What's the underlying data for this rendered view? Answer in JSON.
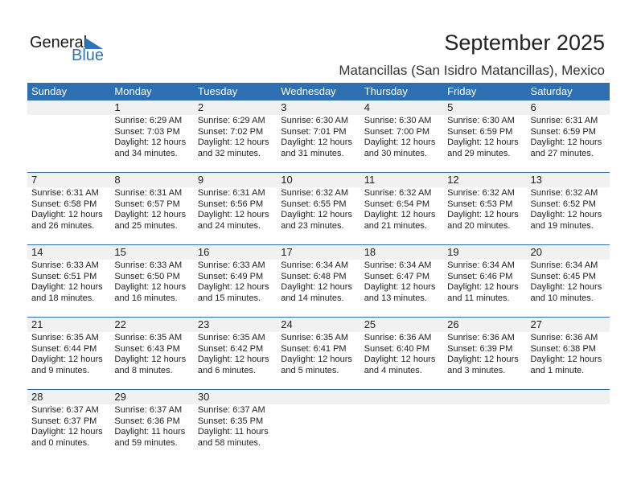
{
  "logo": {
    "general": "General",
    "blue": "Blue"
  },
  "title": "September 2025",
  "location": "Matancillas (San Isidro Matancillas), Mexico",
  "colors": {
    "header": "#2e6fb1",
    "band": "#f1f1f1",
    "logo_blue": "#2e75b6"
  },
  "weekdays": [
    "Sunday",
    "Monday",
    "Tuesday",
    "Wednesday",
    "Thursday",
    "Friday",
    "Saturday"
  ],
  "weeks": [
    [
      null,
      {
        "day": "1",
        "sunrise": "Sunrise: 6:29 AM",
        "sunset": "Sunset: 7:03 PM",
        "daylight1": "Daylight: 12 hours",
        "daylight2": "and 34 minutes."
      },
      {
        "day": "2",
        "sunrise": "Sunrise: 6:29 AM",
        "sunset": "Sunset: 7:02 PM",
        "daylight1": "Daylight: 12 hours",
        "daylight2": "and 32 minutes."
      },
      {
        "day": "3",
        "sunrise": "Sunrise: 6:30 AM",
        "sunset": "Sunset: 7:01 PM",
        "daylight1": "Daylight: 12 hours",
        "daylight2": "and 31 minutes."
      },
      {
        "day": "4",
        "sunrise": "Sunrise: 6:30 AM",
        "sunset": "Sunset: 7:00 PM",
        "daylight1": "Daylight: 12 hours",
        "daylight2": "and 30 minutes."
      },
      {
        "day": "5",
        "sunrise": "Sunrise: 6:30 AM",
        "sunset": "Sunset: 6:59 PM",
        "daylight1": "Daylight: 12 hours",
        "daylight2": "and 29 minutes."
      },
      {
        "day": "6",
        "sunrise": "Sunrise: 6:31 AM",
        "sunset": "Sunset: 6:59 PM",
        "daylight1": "Daylight: 12 hours",
        "daylight2": "and 27 minutes."
      }
    ],
    [
      {
        "day": "7",
        "sunrise": "Sunrise: 6:31 AM",
        "sunset": "Sunset: 6:58 PM",
        "daylight1": "Daylight: 12 hours",
        "daylight2": "and 26 minutes."
      },
      {
        "day": "8",
        "sunrise": "Sunrise: 6:31 AM",
        "sunset": "Sunset: 6:57 PM",
        "daylight1": "Daylight: 12 hours",
        "daylight2": "and 25 minutes."
      },
      {
        "day": "9",
        "sunrise": "Sunrise: 6:31 AM",
        "sunset": "Sunset: 6:56 PM",
        "daylight1": "Daylight: 12 hours",
        "daylight2": "and 24 minutes."
      },
      {
        "day": "10",
        "sunrise": "Sunrise: 6:32 AM",
        "sunset": "Sunset: 6:55 PM",
        "daylight1": "Daylight: 12 hours",
        "daylight2": "and 23 minutes."
      },
      {
        "day": "11",
        "sunrise": "Sunrise: 6:32 AM",
        "sunset": "Sunset: 6:54 PM",
        "daylight1": "Daylight: 12 hours",
        "daylight2": "and 21 minutes."
      },
      {
        "day": "12",
        "sunrise": "Sunrise: 6:32 AM",
        "sunset": "Sunset: 6:53 PM",
        "daylight1": "Daylight: 12 hours",
        "daylight2": "and 20 minutes."
      },
      {
        "day": "13",
        "sunrise": "Sunrise: 6:32 AM",
        "sunset": "Sunset: 6:52 PM",
        "daylight1": "Daylight: 12 hours",
        "daylight2": "and 19 minutes."
      }
    ],
    [
      {
        "day": "14",
        "sunrise": "Sunrise: 6:33 AM",
        "sunset": "Sunset: 6:51 PM",
        "daylight1": "Daylight: 12 hours",
        "daylight2": "and 18 minutes."
      },
      {
        "day": "15",
        "sunrise": "Sunrise: 6:33 AM",
        "sunset": "Sunset: 6:50 PM",
        "daylight1": "Daylight: 12 hours",
        "daylight2": "and 16 minutes."
      },
      {
        "day": "16",
        "sunrise": "Sunrise: 6:33 AM",
        "sunset": "Sunset: 6:49 PM",
        "daylight1": "Daylight: 12 hours",
        "daylight2": "and 15 minutes."
      },
      {
        "day": "17",
        "sunrise": "Sunrise: 6:34 AM",
        "sunset": "Sunset: 6:48 PM",
        "daylight1": "Daylight: 12 hours",
        "daylight2": "and 14 minutes."
      },
      {
        "day": "18",
        "sunrise": "Sunrise: 6:34 AM",
        "sunset": "Sunset: 6:47 PM",
        "daylight1": "Daylight: 12 hours",
        "daylight2": "and 13 minutes."
      },
      {
        "day": "19",
        "sunrise": "Sunrise: 6:34 AM",
        "sunset": "Sunset: 6:46 PM",
        "daylight1": "Daylight: 12 hours",
        "daylight2": "and 11 minutes."
      },
      {
        "day": "20",
        "sunrise": "Sunrise: 6:34 AM",
        "sunset": "Sunset: 6:45 PM",
        "daylight1": "Daylight: 12 hours",
        "daylight2": "and 10 minutes."
      }
    ],
    [
      {
        "day": "21",
        "sunrise": "Sunrise: 6:35 AM",
        "sunset": "Sunset: 6:44 PM",
        "daylight1": "Daylight: 12 hours",
        "daylight2": "and 9 minutes."
      },
      {
        "day": "22",
        "sunrise": "Sunrise: 6:35 AM",
        "sunset": "Sunset: 6:43 PM",
        "daylight1": "Daylight: 12 hours",
        "daylight2": "and 8 minutes."
      },
      {
        "day": "23",
        "sunrise": "Sunrise: 6:35 AM",
        "sunset": "Sunset: 6:42 PM",
        "daylight1": "Daylight: 12 hours",
        "daylight2": "and 6 minutes."
      },
      {
        "day": "24",
        "sunrise": "Sunrise: 6:35 AM",
        "sunset": "Sunset: 6:41 PM",
        "daylight1": "Daylight: 12 hours",
        "daylight2": "and 5 minutes."
      },
      {
        "day": "25",
        "sunrise": "Sunrise: 6:36 AM",
        "sunset": "Sunset: 6:40 PM",
        "daylight1": "Daylight: 12 hours",
        "daylight2": "and 4 minutes."
      },
      {
        "day": "26",
        "sunrise": "Sunrise: 6:36 AM",
        "sunset": "Sunset: 6:39 PM",
        "daylight1": "Daylight: 12 hours",
        "daylight2": "and 3 minutes."
      },
      {
        "day": "27",
        "sunrise": "Sunrise: 6:36 AM",
        "sunset": "Sunset: 6:38 PM",
        "daylight1": "Daylight: 12 hours",
        "daylight2": "and 1 minute."
      }
    ],
    [
      {
        "day": "28",
        "sunrise": "Sunrise: 6:37 AM",
        "sunset": "Sunset: 6:37 PM",
        "daylight1": "Daylight: 12 hours",
        "daylight2": "and 0 minutes."
      },
      {
        "day": "29",
        "sunrise": "Sunrise: 6:37 AM",
        "sunset": "Sunset: 6:36 PM",
        "daylight1": "Daylight: 11 hours",
        "daylight2": "and 59 minutes."
      },
      {
        "day": "30",
        "sunrise": "Sunrise: 6:37 AM",
        "sunset": "Sunset: 6:35 PM",
        "daylight1": "Daylight: 11 hours",
        "daylight2": "and 58 minutes."
      },
      null,
      null,
      null,
      null
    ]
  ]
}
